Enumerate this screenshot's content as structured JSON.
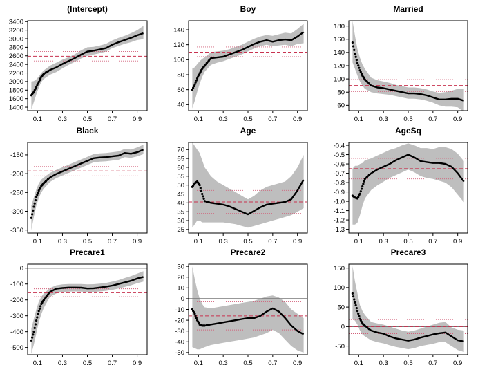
{
  "chart_data": [
    {
      "type": "line",
      "title": "(Intercept)",
      "x_ticks": [
        0.1,
        0.3,
        0.5,
        0.7,
        0.9
      ],
      "y_ticks": [
        1400,
        1600,
        1800,
        2000,
        2200,
        2400,
        2600,
        2800,
        3000,
        3200,
        3400
      ],
      "xlim": [
        0.02,
        0.98
      ],
      "ylim": [
        1320,
        3420
      ],
      "ols_estimate": 2590,
      "ols_ci": [
        2480,
        2700
      ],
      "zero_line": false,
      "series": [
        {
          "x": [
            0.05,
            0.07,
            0.09,
            0.11,
            0.13,
            0.15,
            0.2,
            0.25,
            0.3,
            0.35,
            0.4,
            0.45,
            0.5,
            0.55,
            0.6,
            0.65,
            0.7,
            0.75,
            0.8,
            0.85,
            0.9,
            0.95
          ],
          "y": [
            1680,
            1760,
            1870,
            1990,
            2110,
            2180,
            2270,
            2330,
            2410,
            2480,
            2550,
            2630,
            2700,
            2720,
            2750,
            2780,
            2860,
            2920,
            2970,
            3020,
            3080,
            3130
          ],
          "lower": [
            1350,
            1520,
            1700,
            1860,
            1990,
            2060,
            2160,
            2220,
            2310,
            2390,
            2460,
            2540,
            2600,
            2630,
            2660,
            2700,
            2780,
            2830,
            2880,
            2920,
            2970,
            2990
          ],
          "upper": [
            2000,
            2010,
            2050,
            2120,
            2200,
            2260,
            2370,
            2440,
            2510,
            2570,
            2640,
            2730,
            2800,
            2810,
            2840,
            2880,
            2960,
            3020,
            3070,
            3130,
            3200,
            3300
          ]
        }
      ]
    },
    {
      "type": "line",
      "title": "Boy",
      "x_ticks": [
        0.1,
        0.3,
        0.5,
        0.7,
        0.9
      ],
      "y_ticks": [
        40,
        60,
        80,
        100,
        120,
        140
      ],
      "xlim": [
        0.02,
        0.98
      ],
      "ylim": [
        32,
        152
      ],
      "ols_estimate": 110,
      "ols_ci": [
        104,
        117
      ],
      "zero_line": false,
      "series": [
        {
          "x": [
            0.05,
            0.07,
            0.09,
            0.11,
            0.13,
            0.15,
            0.2,
            0.25,
            0.3,
            0.35,
            0.4,
            0.45,
            0.5,
            0.55,
            0.6,
            0.65,
            0.7,
            0.75,
            0.8,
            0.85,
            0.9,
            0.95
          ],
          "y": [
            60,
            67,
            75,
            82,
            88,
            92,
            102,
            103,
            104,
            107,
            110,
            113,
            117,
            121,
            124,
            126,
            124,
            126,
            127,
            126,
            131,
            137
          ],
          "lower": [
            35,
            45,
            57,
            68,
            77,
            84,
            93,
            96,
            98,
            101,
            104,
            107,
            111,
            115,
            118,
            120,
            118,
            119,
            120,
            118,
            121,
            122
          ],
          "upper": [
            88,
            90,
            94,
            98,
            101,
            103,
            110,
            111,
            112,
            114,
            117,
            120,
            124,
            128,
            131,
            133,
            132,
            134,
            136,
            135,
            141,
            148
          ]
        }
      ]
    },
    {
      "type": "line",
      "title": "Married",
      "x_ticks": [
        0.1,
        0.3,
        0.5,
        0.7,
        0.9
      ],
      "y_ticks": [
        60,
        80,
        100,
        120,
        140,
        160,
        180
      ],
      "xlim": [
        0.02,
        0.98
      ],
      "ylim": [
        52,
        188
      ],
      "ols_estimate": 90,
      "ols_ci": [
        81,
        99
      ],
      "zero_line": false,
      "series": [
        {
          "x": [
            0.05,
            0.07,
            0.09,
            0.11,
            0.13,
            0.15,
            0.2,
            0.25,
            0.3,
            0.35,
            0.4,
            0.45,
            0.5,
            0.55,
            0.6,
            0.65,
            0.7,
            0.75,
            0.8,
            0.85,
            0.9,
            0.95
          ],
          "y": [
            155,
            138,
            124,
            113,
            105,
            99,
            90,
            87,
            86,
            84,
            82,
            80,
            78,
            78,
            77,
            75,
            72,
            69,
            69,
            70,
            70,
            67
          ],
          "lower": [
            125,
            115,
            105,
            96,
            90,
            85,
            80,
            78,
            77,
            76,
            74,
            72,
            70,
            70,
            69,
            67,
            64,
            60,
            58,
            58,
            57,
            50
          ],
          "upper": [
            188,
            165,
            145,
            132,
            122,
            115,
            102,
            98,
            96,
            94,
            91,
            89,
            87,
            87,
            86,
            84,
            81,
            79,
            80,
            82,
            85,
            85
          ]
        }
      ]
    },
    {
      "type": "line",
      "title": "Black",
      "x_ticks": [
        0.1,
        0.3,
        0.5,
        0.7,
        0.9
      ],
      "y_ticks": [
        -350,
        -300,
        -250,
        -200,
        -150
      ],
      "xlim": [
        0.02,
        0.98
      ],
      "ylim": [
        -358,
        -117
      ],
      "ols_estimate": -193,
      "ols_ci": [
        -206,
        -181
      ],
      "zero_line": false,
      "series": [
        {
          "x": [
            0.05,
            0.07,
            0.09,
            0.11,
            0.13,
            0.15,
            0.2,
            0.25,
            0.3,
            0.35,
            0.4,
            0.45,
            0.5,
            0.55,
            0.6,
            0.65,
            0.7,
            0.75,
            0.8,
            0.85,
            0.9,
            0.95
          ],
          "y": [
            -318,
            -288,
            -262,
            -245,
            -233,
            -225,
            -210,
            -201,
            -194,
            -187,
            -180,
            -173,
            -166,
            -159,
            -157,
            -156,
            -154,
            -152,
            -145,
            -147,
            -143,
            -136
          ],
          "lower": [
            -350,
            -315,
            -285,
            -265,
            -250,
            -240,
            -222,
            -212,
            -205,
            -198,
            -191,
            -184,
            -177,
            -170,
            -168,
            -167,
            -165,
            -163,
            -156,
            -158,
            -154,
            -148
          ],
          "upper": [
            -285,
            -263,
            -242,
            -226,
            -216,
            -210,
            -198,
            -190,
            -183,
            -176,
            -169,
            -162,
            -155,
            -148,
            -146,
            -145,
            -143,
            -141,
            -134,
            -136,
            -130,
            -123
          ]
        }
      ]
    },
    {
      "type": "line",
      "title": "Age",
      "x_ticks": [
        0.1,
        0.3,
        0.5,
        0.7,
        0.9
      ],
      "y_ticks": [
        25,
        30,
        35,
        40,
        45,
        50,
        55,
        60,
        65,
        70
      ],
      "xlim": [
        0.02,
        0.98
      ],
      "ylim": [
        23,
        74
      ],
      "ols_estimate": 40.5,
      "ols_ci": [
        34,
        47
      ],
      "zero_line": false,
      "series": [
        {
          "x": [
            0.05,
            0.07,
            0.09,
            0.11,
            0.13,
            0.15,
            0.2,
            0.25,
            0.3,
            0.35,
            0.4,
            0.45,
            0.5,
            0.55,
            0.6,
            0.65,
            0.7,
            0.75,
            0.8,
            0.85,
            0.9,
            0.95
          ],
          "y": [
            49,
            51,
            52,
            50,
            45,
            41,
            40,
            39.5,
            39,
            38,
            36.5,
            35,
            33.5,
            35.5,
            37.5,
            39,
            39.5,
            40,
            40.5,
            42,
            47,
            53
          ],
          "lower": [
            26,
            28,
            30,
            30,
            29,
            29,
            29,
            29,
            29,
            28.5,
            28,
            27,
            26,
            27,
            28,
            29,
            30,
            31,
            32,
            33,
            35,
            37
          ],
          "upper": [
            74,
            72,
            70,
            68,
            64,
            60,
            55,
            52,
            50,
            48,
            46,
            44,
            42,
            44,
            47,
            49,
            50,
            51,
            52,
            55,
            60,
            67
          ]
        }
      ]
    },
    {
      "type": "line",
      "title": "AgeSq",
      "x_ticks": [
        0.1,
        0.3,
        0.5,
        0.7,
        0.9
      ],
      "y_ticks": [
        -1.3,
        -1.2,
        -1.1,
        -1.0,
        -0.9,
        -0.8,
        -0.7,
        -0.6,
        -0.5,
        -0.4
      ],
      "y_tick_labels": [
        "-1.3",
        "-1.2",
        "-1.1",
        "-1.0",
        "-0.9",
        "-0.8",
        "-0.7",
        "-0.6",
        "-0.5",
        "-0.4"
      ],
      "xlim": [
        0.02,
        0.98
      ],
      "ylim": [
        -1.34,
        -0.37
      ],
      "ols_estimate": -0.65,
      "ols_ci": [
        -0.76,
        -0.54
      ],
      "zero_line": false,
      "series": [
        {
          "x": [
            0.05,
            0.07,
            0.09,
            0.11,
            0.13,
            0.15,
            0.2,
            0.25,
            0.3,
            0.35,
            0.4,
            0.45,
            0.5,
            0.55,
            0.6,
            0.65,
            0.7,
            0.75,
            0.8,
            0.85,
            0.9,
            0.95
          ],
          "y": [
            -0.94,
            -0.96,
            -0.97,
            -0.92,
            -0.84,
            -0.76,
            -0.7,
            -0.66,
            -0.63,
            -0.6,
            -0.56,
            -0.53,
            -0.5,
            -0.53,
            -0.57,
            -0.58,
            -0.59,
            -0.59,
            -0.6,
            -0.63,
            -0.7,
            -0.79
          ],
          "lower": [
            -1.25,
            -1.25,
            -1.23,
            -1.15,
            -1.05,
            -0.97,
            -0.88,
            -0.83,
            -0.79,
            -0.75,
            -0.72,
            -0.69,
            -0.66,
            -0.69,
            -0.73,
            -0.75,
            -0.76,
            -0.78,
            -0.8,
            -0.85,
            -0.93,
            -1.01
          ],
          "upper": [
            -0.65,
            -0.62,
            -0.62,
            -0.6,
            -0.59,
            -0.56,
            -0.54,
            -0.51,
            -0.48,
            -0.45,
            -0.43,
            -0.4,
            -0.38,
            -0.4,
            -0.43,
            -0.43,
            -0.44,
            -0.42,
            -0.42,
            -0.44,
            -0.49,
            -0.57
          ]
        }
      ]
    },
    {
      "type": "line",
      "title": "Precare1",
      "x_ticks": [
        0.1,
        0.3,
        0.5,
        0.7,
        0.9
      ],
      "y_ticks": [
        -500,
        -400,
        -300,
        -200,
        -100,
        0
      ],
      "xlim": [
        0.02,
        0.98
      ],
      "ylim": [
        -545,
        25
      ],
      "ols_estimate": -155,
      "ols_ci": [
        -180,
        -130
      ],
      "zero_line": true,
      "series": [
        {
          "x": [
            0.05,
            0.07,
            0.09,
            0.11,
            0.13,
            0.15,
            0.2,
            0.25,
            0.3,
            0.35,
            0.4,
            0.45,
            0.5,
            0.55,
            0.6,
            0.65,
            0.7,
            0.75,
            0.8,
            0.85,
            0.9,
            0.95
          ],
          "y": [
            -455,
            -400,
            -330,
            -270,
            -225,
            -200,
            -150,
            -130,
            -125,
            -122,
            -122,
            -123,
            -128,
            -127,
            -122,
            -117,
            -110,
            -100,
            -90,
            -80,
            -65,
            -55
          ],
          "lower": [
            -540,
            -480,
            -410,
            -340,
            -290,
            -250,
            -180,
            -160,
            -150,
            -148,
            -147,
            -148,
            -150,
            -150,
            -147,
            -143,
            -137,
            -128,
            -118,
            -108,
            -95,
            -85
          ],
          "upper": [
            -380,
            -320,
            -260,
            -210,
            -180,
            -160,
            -125,
            -108,
            -102,
            -100,
            -100,
            -100,
            -102,
            -101,
            -98,
            -93,
            -85,
            -75,
            -62,
            -50,
            -35,
            -20
          ]
        }
      ]
    },
    {
      "type": "line",
      "title": "Precare2",
      "x_ticks": [
        0.1,
        0.3,
        0.5,
        0.7,
        0.9
      ],
      "y_ticks": [
        -50,
        -40,
        -30,
        -20,
        -10,
        0,
        10,
        20,
        30
      ],
      "xlim": [
        0.02,
        0.98
      ],
      "ylim": [
        -52,
        32
      ],
      "ols_estimate": -16,
      "ols_ci": [
        -29,
        -3
      ],
      "zero_line": true,
      "series": [
        {
          "x": [
            0.05,
            0.07,
            0.09,
            0.11,
            0.13,
            0.15,
            0.2,
            0.25,
            0.3,
            0.35,
            0.4,
            0.45,
            0.5,
            0.55,
            0.6,
            0.65,
            0.7,
            0.75,
            0.8,
            0.85,
            0.9,
            0.95
          ],
          "y": [
            -10,
            -14,
            -20,
            -24,
            -25,
            -25,
            -24,
            -23,
            -22,
            -21,
            -20,
            -19,
            -18,
            -18,
            -16,
            -12,
            -9,
            -12,
            -18,
            -25,
            -30,
            -33
          ],
          "lower": [
            -45,
            -46,
            -47,
            -47,
            -46,
            -45,
            -43,
            -42,
            -41,
            -40,
            -39,
            -38,
            -37,
            -36,
            -34,
            -32,
            -29,
            -32,
            -38,
            -44,
            -48,
            -50
          ],
          "upper": [
            30,
            18,
            8,
            0,
            -5,
            -8,
            -9,
            -8,
            -7,
            -6,
            -5,
            -4,
            -3,
            -2,
            0,
            2,
            3,
            1,
            -3,
            -10,
            -14,
            -18
          ]
        }
      ]
    },
    {
      "type": "line",
      "title": "Precare3",
      "x_ticks": [
        0.1,
        0.3,
        0.5,
        0.7,
        0.9
      ],
      "y_ticks": [
        -50,
        0,
        50,
        100,
        150
      ],
      "xlim": [
        0.02,
        0.98
      ],
      "ylim": [
        -72,
        160
      ],
      "ols_estimate": 0,
      "ols_ci": [
        -18,
        18
      ],
      "zero_line": true,
      "series": [
        {
          "x": [
            0.05,
            0.07,
            0.09,
            0.11,
            0.13,
            0.15,
            0.2,
            0.25,
            0.3,
            0.35,
            0.4,
            0.45,
            0.5,
            0.55,
            0.6,
            0.65,
            0.7,
            0.75,
            0.8,
            0.85,
            0.9,
            0.95
          ],
          "y": [
            85,
            62,
            40,
            20,
            8,
            2,
            -10,
            -15,
            -18,
            -25,
            -30,
            -33,
            -36,
            -33,
            -28,
            -24,
            -20,
            -17,
            -15,
            -25,
            -35,
            -38
          ],
          "lower": [
            20,
            15,
            5,
            -10,
            -20,
            -25,
            -35,
            -40,
            -43,
            -48,
            -52,
            -55,
            -58,
            -55,
            -50,
            -47,
            -44,
            -40,
            -40,
            -50,
            -60,
            -65
          ],
          "upper": [
            155,
            115,
            85,
            55,
            40,
            30,
            12,
            8,
            5,
            0,
            -5,
            -10,
            -13,
            -10,
            -5,
            0,
            5,
            10,
            12,
            -2,
            -8,
            -10
          ]
        }
      ]
    }
  ]
}
